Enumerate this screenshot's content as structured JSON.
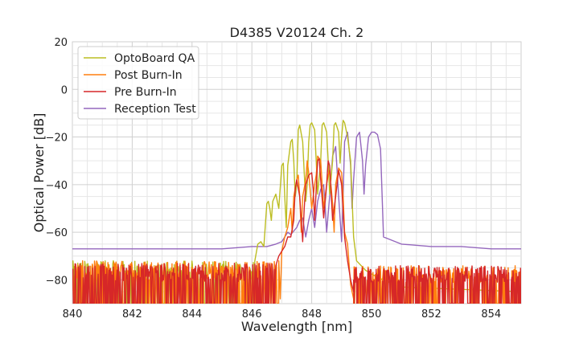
{
  "chart_data": {
    "type": "line",
    "title": "D4385 V20124 Ch. 2",
    "xlabel": "Wavelength [nm]",
    "ylabel": "Optical Power [dB]",
    "xlim": [
      840,
      855
    ],
    "ylim": [
      -90,
      20
    ],
    "xticks": [
      840,
      842,
      844,
      846,
      848,
      850,
      852,
      854
    ],
    "yticks": [
      -80,
      -60,
      -40,
      -20,
      0,
      20
    ],
    "ytick_labels": [
      "−80",
      "−60",
      "−40",
      "−20",
      "0",
      "20"
    ],
    "grid": true,
    "legend_position": "top-left",
    "series": [
      {
        "name": "OptoBoard QA",
        "color": "#bcbd22",
        "noise": {
          "range": [
            840,
            846.1
          ],
          "low": -90,
          "high": -72
        },
        "x": [
          846.1,
          846.2,
          846.3,
          846.4,
          846.5,
          846.55,
          846.6,
          846.65,
          846.7,
          846.8,
          846.9,
          847.0,
          847.05,
          847.1,
          847.15,
          847.2,
          847.3,
          847.35,
          847.4,
          847.45,
          847.5,
          847.55,
          847.6,
          847.7,
          847.75,
          847.8,
          847.85,
          847.9,
          847.95,
          848.0,
          848.1,
          848.15,
          848.2,
          848.3,
          848.35,
          848.4,
          848.5,
          848.55,
          848.6,
          848.7,
          848.75,
          848.8,
          848.9,
          848.95,
          849.0,
          849.05,
          849.1,
          849.2,
          849.3,
          849.4,
          849.5,
          849.8,
          850.2,
          851.0,
          855.0
        ],
        "y": [
          -72,
          -65,
          -64,
          -66,
          -48,
          -47,
          -50,
          -55,
          -47,
          -44,
          -50,
          -32,
          -31,
          -45,
          -58,
          -32,
          -22,
          -21,
          -30,
          -45,
          -40,
          -17,
          -15,
          -22,
          -35,
          -47,
          -40,
          -22,
          -15,
          -14,
          -17,
          -30,
          -44,
          -30,
          -15,
          -14,
          -18,
          -30,
          -44,
          -30,
          -15,
          -14,
          -18,
          -31,
          -20,
          -13,
          -14,
          -20,
          -30,
          -62,
          -72,
          -76,
          -79,
          -83,
          -85
        ]
      },
      {
        "name": "Post Burn-In",
        "color": "#ff7f0e",
        "noise": {
          "range": [
            840,
            846.9
          ],
          "low": -90,
          "high": -72
        },
        "x": [
          846.9,
          846.95,
          847.0,
          847.1,
          847.2,
          847.3,
          847.35,
          847.4,
          847.5,
          847.55,
          847.6,
          847.65,
          847.7,
          847.8,
          847.85,
          847.9,
          848.0,
          848.1,
          848.15,
          848.2,
          848.3,
          848.4,
          848.5,
          848.55,
          848.6,
          848.7,
          848.75,
          848.8,
          848.9,
          849.0,
          849.05,
          849.1,
          849.2,
          849.3,
          849.4
        ],
        "y": [
          -72,
          -88,
          -68,
          -62,
          -58,
          -50,
          -60,
          -45,
          -38,
          -36,
          -45,
          -60,
          -45,
          -38,
          -30,
          -35,
          -50,
          -40,
          -36,
          -28,
          -30,
          -50,
          -40,
          -36,
          -34,
          -48,
          -60,
          -40,
          -33,
          -35,
          -45,
          -60,
          -65,
          -82,
          -88
        ],
        "noise_after": {
          "range": [
            849.4,
            855
          ],
          "low": -90,
          "high": -74
        }
      },
      {
        "name": "Pre Burn-In",
        "color": "#d62728",
        "noise": {
          "range": [
            840,
            846.8
          ],
          "low": -90,
          "high": -73
        },
        "x": [
          846.8,
          846.9,
          847.0,
          847.1,
          847.2,
          847.3,
          847.4,
          847.45,
          847.5,
          847.6,
          847.7,
          847.75,
          847.8,
          847.9,
          848.0,
          848.05,
          848.1,
          848.2,
          848.25,
          848.3,
          848.4,
          848.5,
          848.55,
          848.6,
          848.7,
          848.8,
          848.9,
          849.0,
          849.1,
          849.2,
          849.3,
          849.4
        ],
        "y": [
          -74,
          -70,
          -68,
          -66,
          -62,
          -62,
          -55,
          -42,
          -38,
          -45,
          -64,
          -50,
          -40,
          -36,
          -35,
          -42,
          -55,
          -30,
          -29,
          -38,
          -54,
          -40,
          -30,
          -32,
          -55,
          -45,
          -34,
          -40,
          -62,
          -72,
          -80,
          -85
        ],
        "noise_after": {
          "range": [
            849.4,
            855
          ],
          "low": -90,
          "high": -74
        }
      },
      {
        "name": "Reception Test",
        "color": "#9467bd",
        "x": [
          840.0,
          842.0,
          844.0,
          845.0,
          846.0,
          846.5,
          846.8,
          847.0,
          847.1,
          847.2,
          847.3,
          847.5,
          847.6,
          847.7,
          847.8,
          847.9,
          848.0,
          848.1,
          848.2,
          848.3,
          848.4,
          848.5,
          848.6,
          848.7,
          848.8,
          848.9,
          849.0,
          849.05,
          849.1,
          849.2,
          849.3,
          849.35,
          849.4,
          849.5,
          849.6,
          849.7,
          849.75,
          849.8,
          849.9,
          850.0,
          850.1,
          850.2,
          850.3,
          850.4,
          851.0,
          852.0,
          853.0,
          854.0,
          855.0
        ],
        "y": [
          -67,
          -67,
          -67,
          -67,
          -66,
          -66,
          -65,
          -64,
          -62,
          -60,
          -61,
          -58,
          -55,
          -54,
          -62,
          -55,
          -50,
          -58,
          -47,
          -42,
          -40,
          -60,
          -45,
          -28,
          -24,
          -45,
          -64,
          -45,
          -22,
          -18,
          -32,
          -50,
          -38,
          -20,
          -18,
          -30,
          -44,
          -32,
          -20,
          -18,
          -18,
          -19,
          -25,
          -62,
          -65,
          -66,
          -66,
          -67,
          -67
        ]
      }
    ]
  }
}
